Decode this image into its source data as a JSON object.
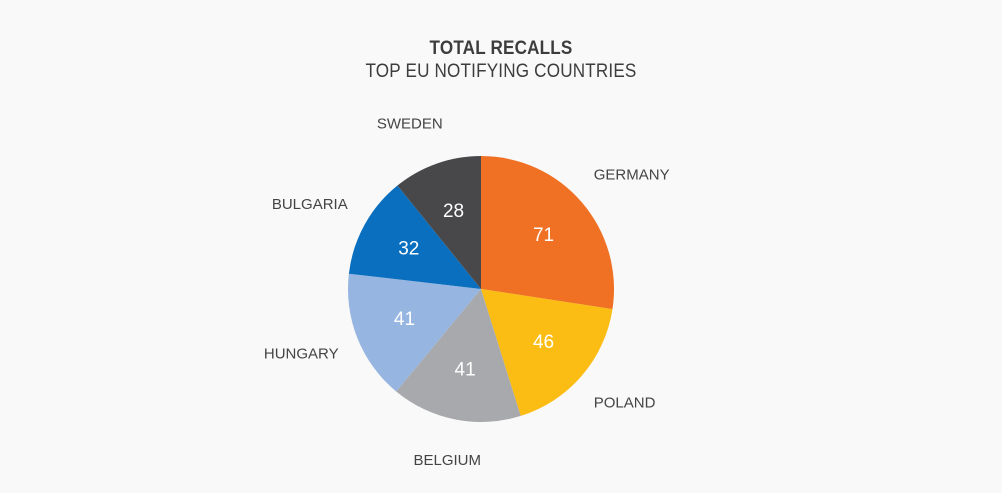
{
  "chart_data": {
    "type": "pie",
    "title": "TOTAL RECALLS",
    "subtitle": "TOP EU NOTIFYING COUNTRIES",
    "categories": [
      "GERMANY",
      "POLAND",
      "BELGIUM",
      "HUNGARY",
      "BULGARIA",
      "SWEDEN"
    ],
    "values": [
      71,
      46,
      41,
      41,
      32,
      28
    ],
    "colors": [
      "#f07124",
      "#fbbd13",
      "#a7a9ac",
      "#96b5e0",
      "#0a6fbf",
      "#48484a"
    ],
    "value_label_color": "#ffffff",
    "start_angle": "12 o'clock",
    "direction": "clockwise"
  }
}
